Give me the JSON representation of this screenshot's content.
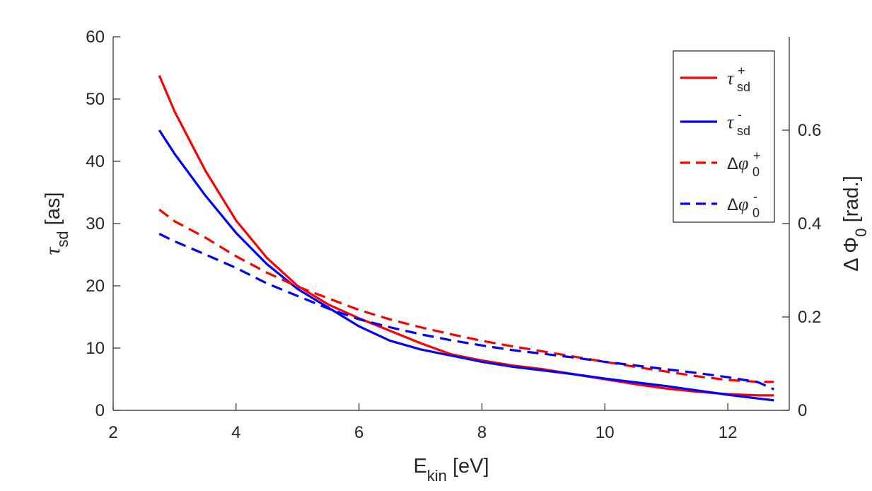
{
  "chart_data": {
    "type": "line",
    "x_axis": {
      "label_main": "E",
      "label_sub": "kin",
      "label_units": " [eV]",
      "range": [
        2,
        13
      ],
      "ticks": [
        2,
        4,
        6,
        8,
        10,
        12
      ]
    },
    "y_left": {
      "label_symbol": "τ",
      "label_sub": "sd",
      "label_units": " [as]",
      "range": [
        0,
        60
      ],
      "ticks": [
        0,
        10,
        20,
        30,
        40,
        50,
        60
      ]
    },
    "y_right": {
      "label_symbol": "Δ Φ",
      "label_sub": "0",
      "label_units": " [rad.]",
      "range": [
        0,
        0.8
      ],
      "ticks": [
        0,
        0.2,
        0.4,
        0.6
      ],
      "tick_labels": [
        "0",
        "0.2",
        "0.4",
        "0.6"
      ]
    },
    "series": [
      {
        "name": "tau_sd_plus",
        "legend_symbol": "τ",
        "legend_sup": "+",
        "legend_sub": "sd",
        "color": "#ff0000",
        "style": "solid",
        "axis": "left",
        "x": [
          2.75,
          3.0,
          3.5,
          4.0,
          4.5,
          5.0,
          5.5,
          6.0,
          6.5,
          7.0,
          7.5,
          8.0,
          8.5,
          9.0,
          9.5,
          10.0,
          10.5,
          11.0,
          11.5,
          12.0,
          12.5,
          12.75
        ],
        "y": [
          53.8,
          48.0,
          38.5,
          30.5,
          24.5,
          20.0,
          17.0,
          14.8,
          12.8,
          10.8,
          9.0,
          8.0,
          7.2,
          6.6,
          5.8,
          5.0,
          4.2,
          3.5,
          3.0,
          2.6,
          2.4,
          2.4
        ]
      },
      {
        "name": "tau_sd_minus",
        "legend_symbol": "τ",
        "legend_sup": "-",
        "legend_sub": "sd",
        "color": "#0000ff",
        "style": "solid",
        "axis": "left",
        "x": [
          2.75,
          3.0,
          3.5,
          4.0,
          4.5,
          5.0,
          5.5,
          6.0,
          6.5,
          7.0,
          7.5,
          8.0,
          8.5,
          9.0,
          9.5,
          10.0,
          10.5,
          11.0,
          11.5,
          12.0,
          12.5,
          12.75
        ],
        "y": [
          45.0,
          41.2,
          34.5,
          28.5,
          23.5,
          19.5,
          16.5,
          13.5,
          11.2,
          9.8,
          8.8,
          7.8,
          7.0,
          6.4,
          5.8,
          5.1,
          4.5,
          3.9,
          3.2,
          2.5,
          1.9,
          1.6
        ]
      },
      {
        "name": "dphi0_plus",
        "legend_symbol": "Δφ",
        "legend_sup": "+",
        "legend_sub": "0",
        "color": "#ff0000",
        "style": "dashed",
        "axis": "right",
        "x": [
          2.75,
          3.0,
          3.5,
          4.0,
          4.5,
          5.0,
          5.5,
          6.0,
          6.5,
          7.0,
          7.5,
          8.0,
          8.5,
          9.0,
          9.5,
          10.0,
          10.5,
          11.0,
          11.5,
          12.0,
          12.5,
          12.75
        ],
        "y": [
          0.43,
          0.405,
          0.37,
          0.33,
          0.295,
          0.265,
          0.24,
          0.215,
          0.195,
          0.178,
          0.163,
          0.149,
          0.137,
          0.126,
          0.115,
          0.104,
          0.093,
          0.083,
          0.073,
          0.065,
          0.061,
          0.061
        ]
      },
      {
        "name": "dphi0_minus",
        "legend_symbol": "Δφ",
        "legend_sup": "-",
        "legend_sub": "0",
        "color": "#0000ff",
        "style": "dashed",
        "axis": "right",
        "x": [
          2.75,
          3.0,
          3.5,
          4.0,
          4.5,
          5.0,
          5.5,
          6.0,
          6.5,
          7.0,
          7.5,
          8.0,
          8.5,
          9.0,
          9.5,
          10.0,
          10.5,
          11.0,
          11.5,
          12.0,
          12.5,
          12.75
        ],
        "y": [
          0.378,
          0.362,
          0.334,
          0.305,
          0.272,
          0.245,
          0.218,
          0.195,
          0.178,
          0.163,
          0.15,
          0.139,
          0.129,
          0.121,
          0.113,
          0.104,
          0.096,
          0.088,
          0.08,
          0.071,
          0.06,
          0.045
        ]
      }
    ],
    "legend_location": "top-right",
    "grid": false
  }
}
